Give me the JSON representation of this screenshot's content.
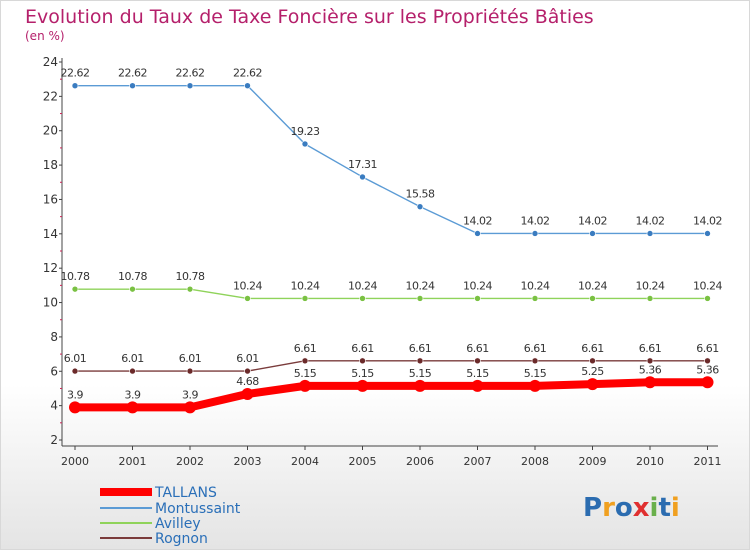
{
  "chart_data": {
    "type": "line",
    "title": "Evolution du Taux de Taxe Foncière sur les Propriétés Bâties",
    "subtitle": "(en %)",
    "xlabel": "",
    "ylabel": "",
    "ylim": [
      2,
      24
    ],
    "yticks": [
      2,
      4,
      6,
      8,
      10,
      12,
      14,
      16,
      18,
      20,
      22,
      24
    ],
    "ytick_labels": [
      "2",
      "4",
      "6",
      "8",
      "10",
      "12",
      "14",
      "16",
      "18",
      "20",
      "22",
      "24"
    ],
    "grid": false,
    "legend_position": "bottom-left",
    "categories": [
      "2000",
      "2001",
      "2002",
      "2003",
      "2004",
      "2005",
      "2006",
      "2007",
      "2008",
      "2009",
      "2010",
      "2011"
    ],
    "series": [
      {
        "name": "Montussaint",
        "color": "#5b9bd5",
        "marker_color": "#3a7cc0",
        "values": [
          22.62,
          22.62,
          22.62,
          22.62,
          19.23,
          17.31,
          15.58,
          14.02,
          14.02,
          14.02,
          14.02,
          14.02
        ],
        "labels": [
          "22.62",
          "22.62",
          "22.62",
          "22.62",
          "19.23",
          "17.31",
          "15.58",
          "14.02",
          "14.02",
          "14.02",
          "14.02",
          "14.02"
        ]
      },
      {
        "name": "Avilley",
        "color": "#8fd35a",
        "marker_color": "#7ac143",
        "values": [
          10.78,
          10.78,
          10.78,
          10.24,
          10.24,
          10.24,
          10.24,
          10.24,
          10.24,
          10.24,
          10.24,
          10.24
        ],
        "labels": [
          "10.78",
          "10.78",
          "10.78",
          "10.24",
          "10.24",
          "10.24",
          "10.24",
          "10.24",
          "10.24",
          "10.24",
          "10.24",
          "10.24"
        ]
      },
      {
        "name": "Rognon",
        "color": "#7a3b3b",
        "marker_color": "#6b2a2a",
        "values": [
          6.01,
          6.01,
          6.01,
          6.01,
          6.61,
          6.61,
          6.61,
          6.61,
          6.61,
          6.61,
          6.61,
          6.61
        ],
        "labels": [
          "6.01",
          "6.01",
          "6.01",
          "6.01",
          "6.61",
          "6.61",
          "6.61",
          "6.61",
          "6.61",
          "6.61",
          "6.61",
          "6.61"
        ]
      },
      {
        "name": "TALLANS",
        "color": "#ff0000",
        "marker_color": "#ff0000",
        "thick": true,
        "values": [
          3.9,
          3.9,
          3.9,
          4.68,
          5.15,
          5.15,
          5.15,
          5.15,
          5.15,
          5.25,
          5.36,
          5.36
        ],
        "labels": [
          "3.9",
          "3.9",
          "3.9",
          "4.68",
          "5.15",
          "5.15",
          "5.15",
          "5.15",
          "5.15",
          "5.25",
          "5.36",
          "5.36"
        ]
      }
    ],
    "legend": [
      "TALLANS",
      "Montussaint",
      "Avilley",
      "Rognon"
    ]
  },
  "logo": {
    "letters": [
      "P",
      "r",
      "o",
      "x",
      "i",
      "t",
      "i"
    ],
    "colors": [
      "#2b6cb0",
      "#f0a020",
      "#2b6cb0",
      "#e03030",
      "#6ab04c",
      "#2b6cb0",
      "#f0a020"
    ]
  }
}
